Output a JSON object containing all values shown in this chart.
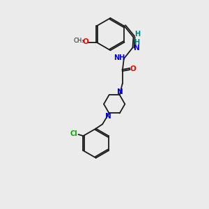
{
  "bg_color": "#ebebeb",
  "bond_color": "#1a1a1a",
  "atom_colors": {
    "N": "#0000e0",
    "O": "#ff0000",
    "Cl": "#00aa00",
    "H_imine": "#008080"
  },
  "lw": 1.3,
  "fs": 6.5,
  "xlim": [
    0,
    10
  ],
  "ylim": [
    0,
    14
  ]
}
